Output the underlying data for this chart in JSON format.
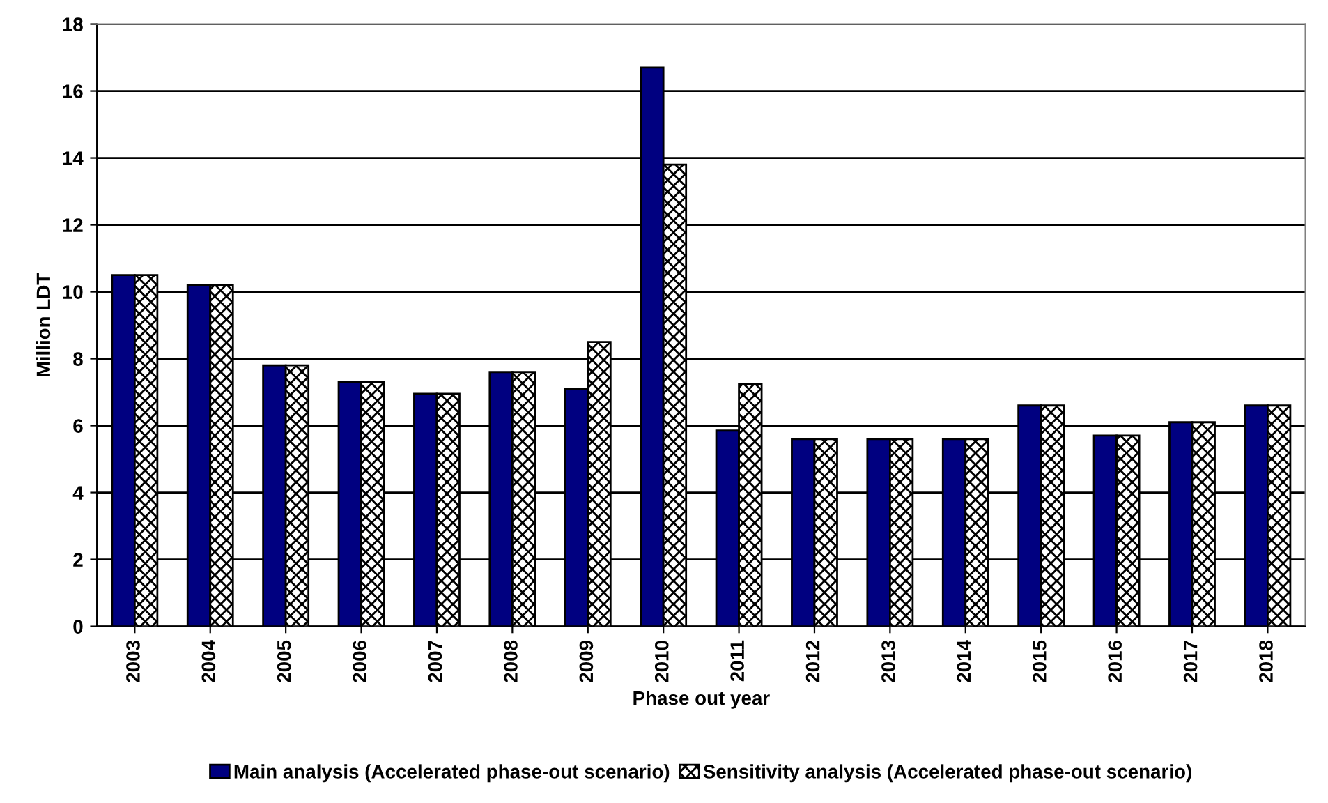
{
  "chart_data": {
    "type": "bar",
    "xlabel": "Phase out year",
    "ylabel": "Million LDT",
    "categories": [
      "2003",
      "2004",
      "2005",
      "2006",
      "2007",
      "2008",
      "2009",
      "2010",
      "2011",
      "2012",
      "2013",
      "2014",
      "2015",
      "2016",
      "2017",
      "2018"
    ],
    "series": [
      {
        "name": "Main analysis (Accelerated phase-out scenario)",
        "color": "#000080",
        "values": [
          10.5,
          10.2,
          7.8,
          7.3,
          6.95,
          7.6,
          7.1,
          16.7,
          5.85,
          5.6,
          5.6,
          5.6,
          6.6,
          5.7,
          6.1,
          6.6
        ]
      },
      {
        "name": "Sensitivity analysis (Accelerated phase-out scenario)",
        "color": "#000000",
        "values": [
          10.5,
          10.2,
          7.8,
          7.3,
          6.95,
          7.6,
          8.5,
          13.8,
          7.25,
          5.6,
          5.6,
          5.6,
          6.6,
          5.7,
          6.1,
          6.6
        ]
      }
    ],
    "ylim": [
      0,
      18
    ],
    "yticks": [
      0,
      2,
      4,
      6,
      8,
      10,
      12,
      14,
      16,
      18
    ],
    "grid": "y",
    "legend": "bottom"
  }
}
